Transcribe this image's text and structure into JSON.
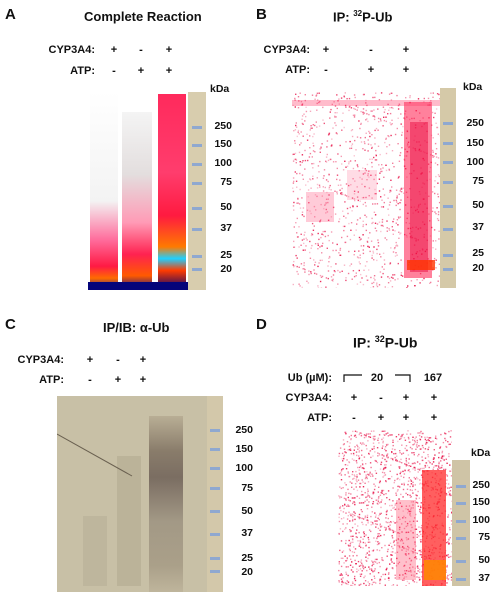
{
  "panels": [
    {
      "letter": "A",
      "title": "Complete Reaction",
      "rows": [
        {
          "label": "CYP3A4:",
          "signs": [
            "+",
            "-",
            "+"
          ]
        },
        {
          "label": "ATP:",
          "signs": [
            "-",
            "+",
            "+"
          ]
        }
      ],
      "kda_label": "kDa",
      "markers": [
        "250",
        "150",
        "100",
        "75",
        "50",
        "37",
        "25",
        "20"
      ]
    },
    {
      "letter": "B",
      "title_pre": "IP: ",
      "title_sup": "32",
      "title_post": "P-Ub",
      "rows": [
        {
          "label": "CYP3A4:",
          "signs": [
            "+",
            "-",
            "+"
          ]
        },
        {
          "label": "ATP:",
          "signs": [
            "-",
            "+",
            "+"
          ]
        }
      ],
      "kda_label": "kDa",
      "markers": [
        "250",
        "150",
        "100",
        "75",
        "50",
        "37",
        "25",
        "20"
      ]
    },
    {
      "letter": "C",
      "title": "IP/IB: α-Ub",
      "rows": [
        {
          "label": "CYP3A4:",
          "signs": [
            "+",
            "-",
            "+"
          ]
        },
        {
          "label": "ATP:",
          "signs": [
            "-",
            "+",
            "+"
          ]
        }
      ],
      "markers": [
        "250",
        "150",
        "100",
        "75",
        "50",
        "37",
        "25",
        "20"
      ]
    },
    {
      "letter": "D",
      "title_pre": "IP: ",
      "title_sup": "32",
      "title_post": "P-Ub",
      "ub_label": "Ub (µM):",
      "ub_values": [
        "20",
        "167"
      ],
      "rows": [
        {
          "label": "CYP3A4:",
          "signs": [
            "+",
            "-",
            "+",
            "+"
          ]
        },
        {
          "label": "ATP:",
          "signs": [
            "-",
            "+",
            "+",
            "+"
          ]
        }
      ],
      "kda_label": "kDa",
      "markers": [
        "250",
        "150",
        "100",
        "75",
        "50",
        "37"
      ]
    }
  ]
}
